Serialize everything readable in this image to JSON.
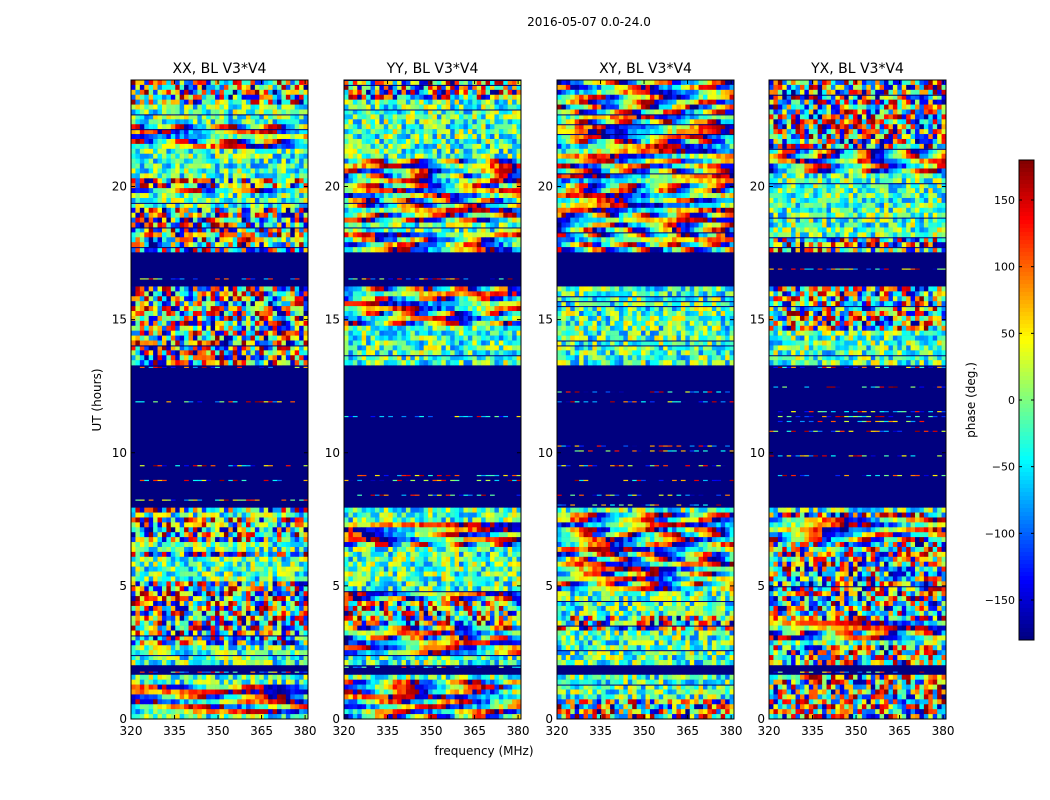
{
  "figure": {
    "suptitle": "2016-05-07 0.0-24.0",
    "colors": {
      "jet": [
        "#00007f",
        "#0000ff",
        "#007fff",
        "#00ffff",
        "#7fff7f",
        "#ffff00",
        "#ff7f00",
        "#ff0000",
        "#7f0000"
      ],
      "blank": "#00007f"
    }
  },
  "chart_data": {
    "type": "heatmap",
    "panels": [
      {
        "title": "XX, BL V3*V4"
      },
      {
        "title": "YY, BL V3*V4"
      },
      {
        "title": "XY, BL V3*V4"
      },
      {
        "title": "YX, BL V3*V4"
      }
    ],
    "xlabel": "frequency (MHz)",
    "ylabel": "UT (hours)",
    "xlim": [
      320,
      381
    ],
    "ylim": [
      0,
      24
    ],
    "xticks": [
      320,
      335,
      350,
      365,
      380
    ],
    "yticks": [
      0,
      5,
      10,
      15,
      20
    ],
    "colorbar": {
      "label": "phase (deg.)",
      "range": [
        -180,
        180
      ],
      "ticks": [
        150,
        100,
        50,
        0,
        -50,
        -100,
        -150
      ],
      "tick_labels": [
        "150",
        "100",
        "50",
        "0",
        "−50",
        "−100",
        "−150"
      ]
    },
    "blank_bands_hours": [
      [
        17.6,
        16.2
      ],
      [
        13.2,
        8.0
      ],
      [
        2.0,
        1.6
      ]
    ],
    "fill_value_phase": -180
  }
}
